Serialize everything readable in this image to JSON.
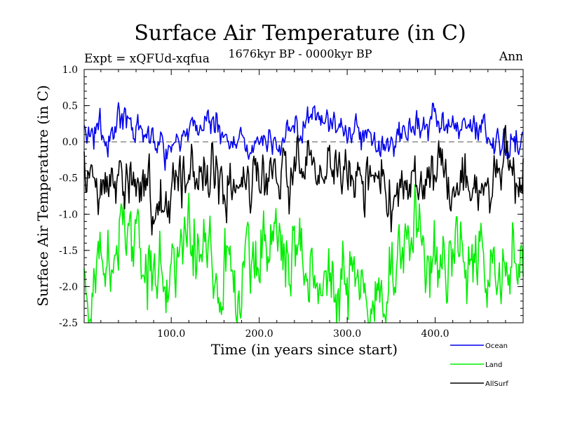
{
  "chart_data": {
    "type": "line",
    "title": "Surface Air Temperature (in C)",
    "subtitle": "1676kyr BP - 0000kyr BP",
    "experiment_label": "Expt = xQFUd-xqfua",
    "season_label": "Ann",
    "xlabel": "Time (in years since start)",
    "ylabel": "Surface Air Temperature (in C)",
    "xlim": [
      1,
      500
    ],
    "ylim": [
      -2.5,
      1.0
    ],
    "x_ticks": [
      100,
      200,
      300,
      400
    ],
    "x_tick_labels": [
      "100.0",
      "200.0",
      "300.0",
      "400.0"
    ],
    "y_ticks": [
      -2.5,
      -2.0,
      -1.5,
      -1.0,
      -0.5,
      0.0,
      0.5,
      1.0
    ],
    "y_tick_labels": [
      "-2.5",
      "-2.0",
      "-1.5",
      "-1.0",
      "-0.5",
      "0.0",
      "0.5",
      "1.0"
    ],
    "reference_line": {
      "y": 0.0,
      "style": "dashed",
      "color": "#555555"
    },
    "grid": false,
    "legend_position": "bottom-right",
    "series": [
      {
        "name": "Ocean",
        "color": "#0000ee",
        "mean": 0.12,
        "amplitude": 0.45,
        "points": [
          [
            1,
            0.12
          ],
          [
            20,
            0.15
          ],
          [
            28,
            -0.15
          ],
          [
            40,
            0.58
          ],
          [
            60,
            0.1
          ],
          [
            96,
            -0.15
          ],
          [
            130,
            0.35
          ],
          [
            150,
            0.4
          ],
          [
            170,
            -0.15
          ],
          [
            210,
            -0.1
          ],
          [
            270,
            0.45
          ],
          [
            300,
            0.3
          ],
          [
            338,
            -0.25
          ],
          [
            380,
            0.38
          ],
          [
            440,
            0.12
          ],
          [
            480,
            -0.05
          ],
          [
            495,
            -0.2
          ],
          [
            500,
            0.3
          ]
        ]
      },
      {
        "name": "Land",
        "color": "#00ee00",
        "mean": -1.67,
        "amplitude": 1.2,
        "points": [
          [
            1,
            -2.1
          ],
          [
            15,
            -1.7
          ],
          [
            50,
            -1.1
          ],
          [
            95,
            -2.25
          ],
          [
            110,
            -1.2
          ],
          [
            130,
            -1.1
          ],
          [
            175,
            -2.2
          ],
          [
            210,
            -1.05
          ],
          [
            240,
            -1.65
          ],
          [
            290,
            -2.1
          ],
          [
            340,
            -2.2
          ],
          [
            380,
            -1.1
          ],
          [
            410,
            -1.9
          ],
          [
            450,
            -1.1
          ],
          [
            490,
            -1.7
          ],
          [
            500,
            -1.5
          ]
        ]
      },
      {
        "name": "AllSurf",
        "color": "#000000",
        "mean": -0.52,
        "amplitude": 0.8,
        "points": [
          [
            1,
            -0.5
          ],
          [
            22,
            -0.85
          ],
          [
            40,
            -0.25
          ],
          [
            92,
            -0.9
          ],
          [
            130,
            -0.2
          ],
          [
            135,
            -0.25
          ],
          [
            172,
            -0.95
          ],
          [
            205,
            -0.5
          ],
          [
            250,
            -0.3
          ],
          [
            310,
            -0.2
          ],
          [
            345,
            -0.95
          ],
          [
            400,
            -0.3
          ],
          [
            460,
            -0.7
          ],
          [
            485,
            -0.25
          ],
          [
            495,
            -0.85
          ],
          [
            500,
            -0.4
          ]
        ]
      }
    ]
  }
}
